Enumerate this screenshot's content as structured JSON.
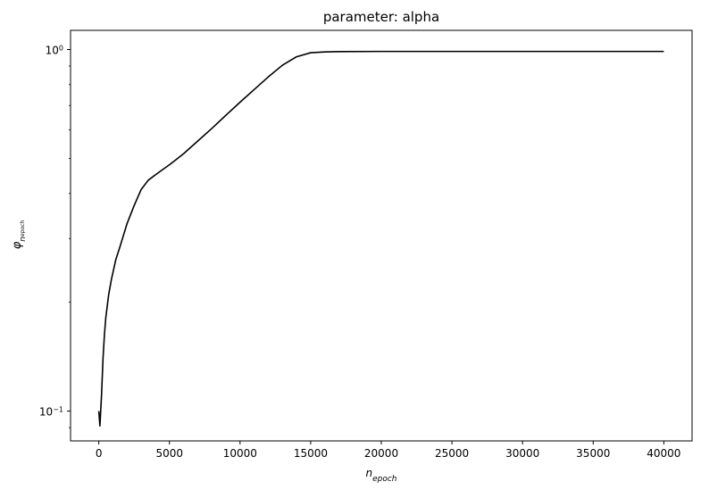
{
  "chart_data": {
    "type": "line",
    "title": "parameter: alpha",
    "xlabel": {
      "base": "n",
      "sub": "epoch"
    },
    "ylabel": {
      "base": "φ",
      "sub": "n",
      "subsub": "epoch"
    },
    "yscale": "log",
    "xlim": [
      -2000,
      42000
    ],
    "ylim": [
      0.0827,
      1.13
    ],
    "x_ticks": [
      0,
      5000,
      10000,
      15000,
      20000,
      25000,
      30000,
      35000,
      40000
    ],
    "x_tick_labels": [
      "0",
      "5000",
      "10000",
      "15000",
      "20000",
      "25000",
      "30000",
      "35000",
      "40000"
    ],
    "y_ticks": [
      {
        "value": 0.1,
        "base": "10",
        "exp": "−1"
      },
      {
        "value": 1.0,
        "base": "10",
        "exp": "0"
      }
    ],
    "grid": false,
    "legend": "none",
    "series": [
      {
        "color": "#000000",
        "x": [
          0,
          80,
          200,
          300,
          400,
          500,
          700,
          900,
          1200,
          1500,
          2000,
          2500,
          3000,
          3500,
          4000,
          4500,
          5000,
          5500,
          6000,
          7000,
          8000,
          9000,
          10000,
          11000,
          12000,
          13000,
          14000,
          15000,
          16000,
          17000,
          20000,
          25000,
          30000,
          35000,
          40000
        ],
        "y": [
          0.1,
          0.091,
          0.112,
          0.14,
          0.163,
          0.182,
          0.21,
          0.232,
          0.262,
          0.285,
          0.33,
          0.37,
          0.41,
          0.435,
          0.45,
          0.465,
          0.48,
          0.497,
          0.515,
          0.558,
          0.605,
          0.658,
          0.715,
          0.775,
          0.84,
          0.905,
          0.955,
          0.98,
          0.985,
          0.987,
          0.988,
          0.988,
          0.988,
          0.988,
          0.988
        ]
      }
    ]
  }
}
